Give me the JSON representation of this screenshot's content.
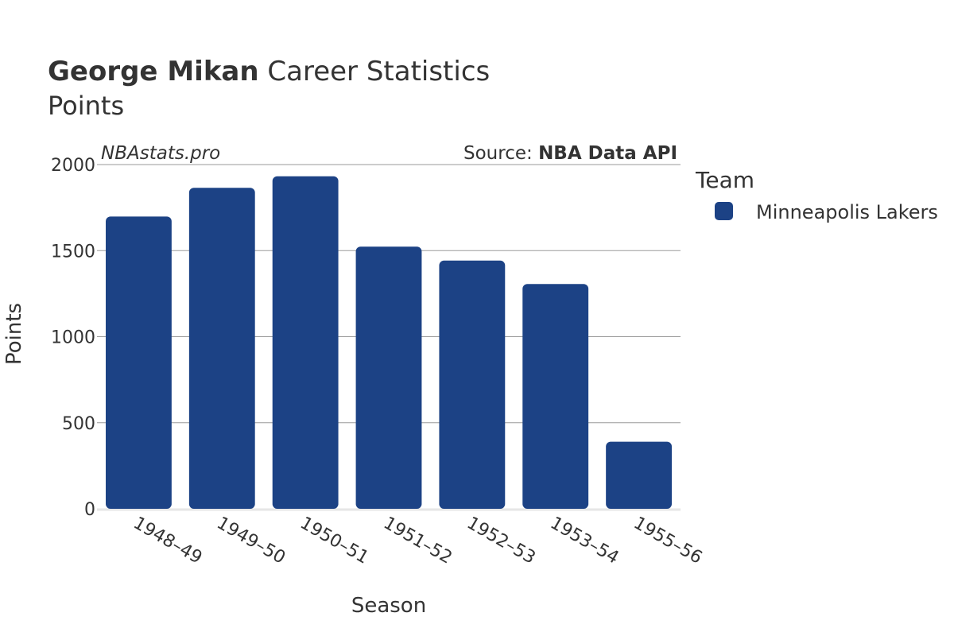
{
  "title": {
    "bold": "George Mikan",
    "regular": " Career Statistics",
    "subtitle": "Points"
  },
  "watermark": "NBAstats.pro",
  "source": {
    "prefix": "Source: ",
    "name": "NBA Data API"
  },
  "legend": {
    "title": "Team"
  },
  "colors": {
    "bar": "#1c4285",
    "grid": "#9a9a9a",
    "baseline": "#e6e6e6",
    "text": "#333333"
  },
  "chart_data": {
    "type": "bar",
    "categories": [
      "1948–49",
      "1949–50",
      "1950–51",
      "1951–52",
      "1952–53",
      "1953–54",
      "1955–56"
    ],
    "series": [
      {
        "name": "Minneapolis Lakers",
        "values": [
          1698,
          1865,
          1932,
          1523,
          1442,
          1306,
          390
        ]
      }
    ],
    "xlabel": "Season",
    "ylabel": "Points",
    "ylim": [
      0,
      2000
    ],
    "yticks": [
      0,
      500,
      1000,
      1500,
      2000
    ],
    "grid": true,
    "legend_position": "right"
  }
}
